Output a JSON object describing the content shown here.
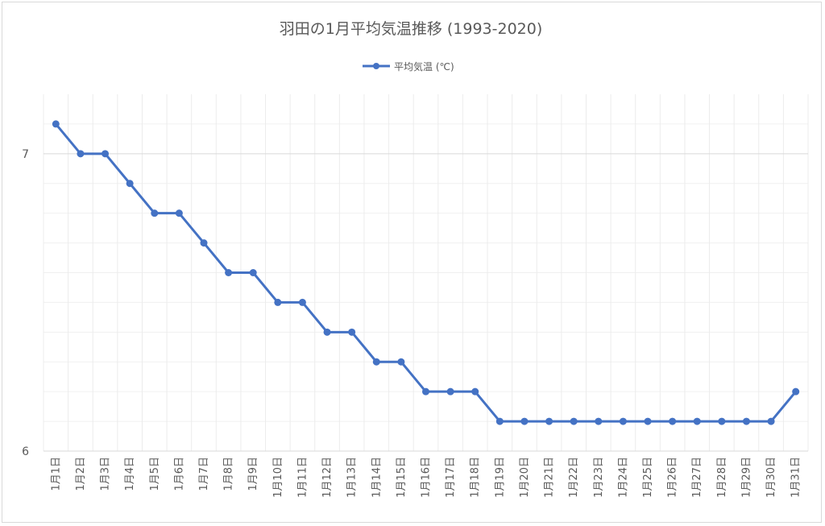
{
  "chart_data": {
    "type": "line",
    "title": "羽田の1月平均気温推移 (1993-2020)",
    "xlabel": "",
    "ylabel": "",
    "categories": [
      "1月1日",
      "1月2日",
      "1月3日",
      "1月4日",
      "1月5日",
      "1月6日",
      "1月7日",
      "1月8日",
      "1月9日",
      "1月10日",
      "1月11日",
      "1月12日",
      "1月13日",
      "1月14日",
      "1月15日",
      "1月16日",
      "1月17日",
      "1月18日",
      "1月19日",
      "1月20日",
      "1月21日",
      "1月22日",
      "1月23日",
      "1月24日",
      "1月25日",
      "1月26日",
      "1月27日",
      "1月28日",
      "1月29日",
      "1月30日",
      "1月31日"
    ],
    "series": [
      {
        "name": "平均気温 (℃)",
        "color": "#4472c4",
        "values": [
          7.1,
          7.0,
          7.0,
          6.9,
          6.8,
          6.8,
          6.7,
          6.6,
          6.6,
          6.5,
          6.5,
          6.4,
          6.4,
          6.3,
          6.3,
          6.2,
          6.2,
          6.2,
          6.1,
          6.1,
          6.1,
          6.1,
          6.1,
          6.1,
          6.1,
          6.1,
          6.1,
          6.1,
          6.1,
          6.1,
          6.2
        ]
      }
    ],
    "ylim": [
      6.0,
      7.2
    ],
    "yticks": [
      "6",
      "7"
    ],
    "ytick_values": [
      6,
      7
    ],
    "grid": true,
    "legend": "top-center"
  }
}
